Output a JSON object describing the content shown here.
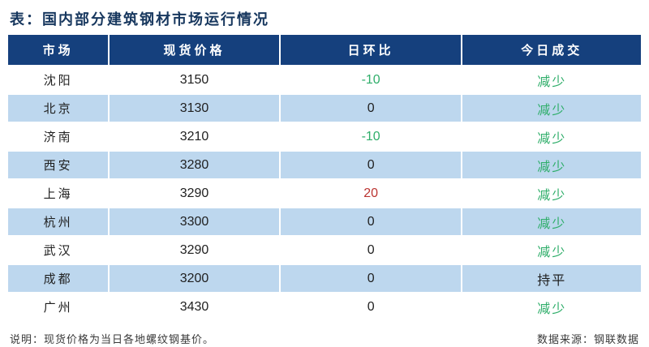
{
  "title": "表：国内部分建筑钢材市场运行情况",
  "chart_data": {
    "type": "table",
    "title": "国内部分建筑钢材市场运行情况",
    "columns": [
      "市场",
      "现货价格",
      "日环比",
      "今日成交"
    ],
    "rows": [
      {
        "market": "沈阳",
        "price": "3150",
        "dod": "-10",
        "dod_class": "neg",
        "deal": "减少",
        "deal_class": "down"
      },
      {
        "market": "北京",
        "price": "3130",
        "dod": "0",
        "dod_class": "",
        "deal": "减少",
        "deal_class": "down"
      },
      {
        "market": "济南",
        "price": "3210",
        "dod": "-10",
        "dod_class": "neg",
        "deal": "减少",
        "deal_class": "down"
      },
      {
        "market": "西安",
        "price": "3280",
        "dod": "0",
        "dod_class": "",
        "deal": "减少",
        "deal_class": "down"
      },
      {
        "market": "上海",
        "price": "3290",
        "dod": "20",
        "dod_class": "pos",
        "deal": "减少",
        "deal_class": "down"
      },
      {
        "market": "杭州",
        "price": "3300",
        "dod": "0",
        "dod_class": "",
        "deal": "减少",
        "deal_class": "down"
      },
      {
        "market": "武汉",
        "price": "3290",
        "dod": "0",
        "dod_class": "",
        "deal": "减少",
        "deal_class": "down"
      },
      {
        "market": "成都",
        "price": "3200",
        "dod": "0",
        "dod_class": "",
        "deal": "持平",
        "deal_class": "flat"
      },
      {
        "market": "广州",
        "price": "3430",
        "dod": "0",
        "dod_class": "",
        "deal": "减少",
        "deal_class": "down"
      }
    ]
  },
  "footer": {
    "note": "说明：现货价格为当日各地螺纹钢基价。",
    "source": "数据来源：钢联数据"
  },
  "colors": {
    "title_color": "#17375e",
    "header_bg": "#15407d",
    "header_text": "#ffffff",
    "row_alt": "#bdd7ee",
    "green": "#2fae6a",
    "red": "#bb3431",
    "text_color": "#1f1f1f",
    "footer_text": "#3a3a3a"
  }
}
